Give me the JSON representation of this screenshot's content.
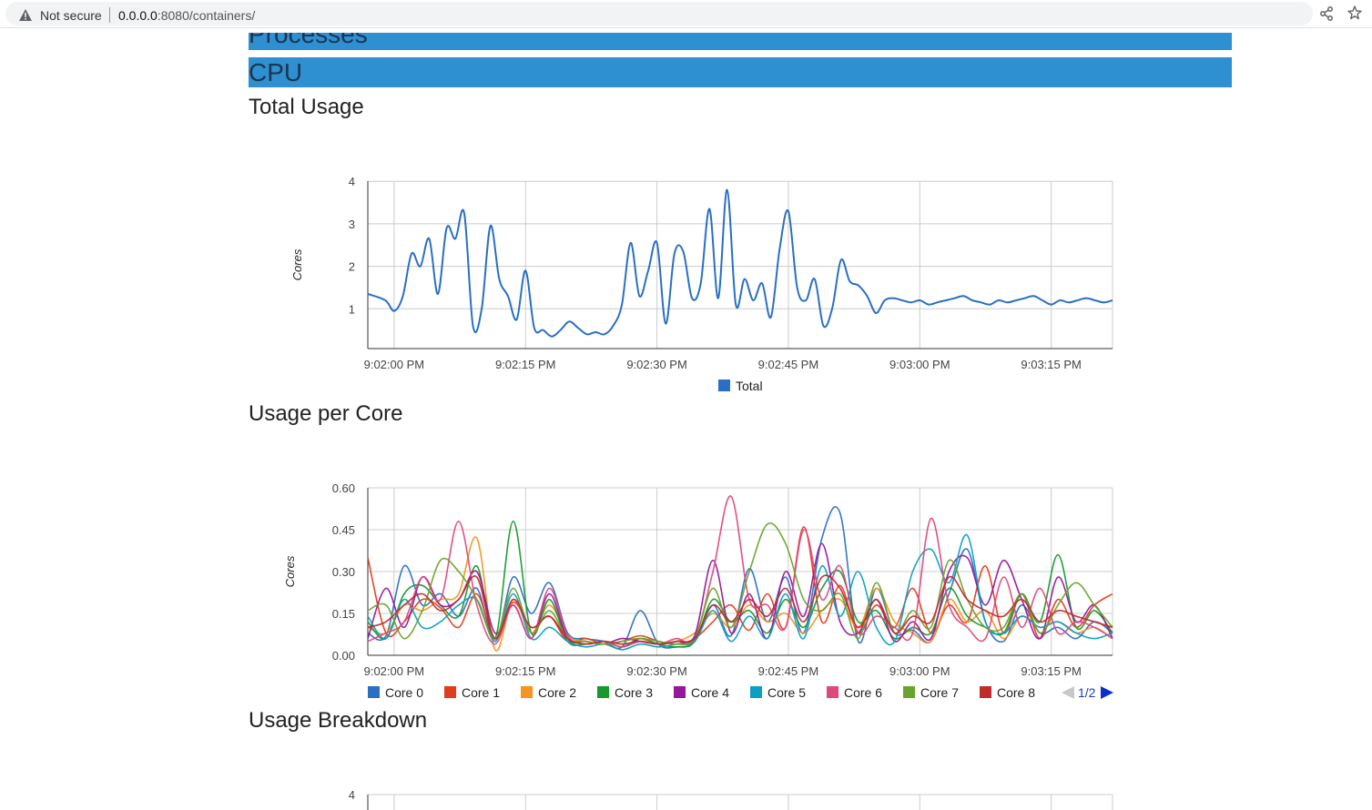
{
  "browser": {
    "security_label": "Not secure",
    "url_host": "0.0.0.0",
    "url_rest": ":8080/containers/"
  },
  "sections": {
    "processes": "Processes",
    "cpu": "CPU"
  },
  "charts": {
    "total_title": "Total Usage",
    "per_core_title": "Usage per Core",
    "breakdown_title": "Usage Breakdown"
  },
  "colors": {
    "header_bar": "#2e8fd1",
    "total": "#2a6fc4",
    "cores": [
      "#2a6fc4",
      "#e23c1f",
      "#f7931e",
      "#159a2c",
      "#97169c",
      "#0d9ec5",
      "#e0487c",
      "#6aa32d",
      "#c02b2b"
    ]
  },
  "chart_data": [
    {
      "type": "line",
      "title": "Total Usage",
      "xlabel": "",
      "ylabel": "Cores",
      "x_ticks": [
        "9:02:00 PM",
        "9:02:15 PM",
        "9:02:30 PM",
        "9:02:45 PM",
        "9:03:00 PM",
        "9:03:15 PM"
      ],
      "y_ticks": [
        "1",
        "2",
        "3",
        "4"
      ],
      "ylim": [
        0,
        4
      ],
      "x_range_seconds": [
        -3,
        82
      ],
      "legend_position": "bottom",
      "grid": true,
      "series": [
        {
          "name": "Total",
          "x": [
            -3,
            -1,
            0,
            1,
            2,
            3,
            4,
            5,
            6,
            7,
            8,
            9,
            10,
            11,
            12,
            13,
            14,
            15,
            16,
            17,
            18,
            19,
            20,
            21,
            22,
            23,
            24,
            25,
            26,
            27,
            28,
            29,
            30,
            31,
            32,
            33,
            34,
            35,
            36,
            37,
            38,
            39,
            40,
            41,
            42,
            43,
            44,
            45,
            46,
            47,
            48,
            49,
            50,
            51,
            52,
            53,
            54,
            55,
            56,
            57,
            58,
            59,
            60,
            61,
            62,
            63,
            64,
            65,
            66,
            67,
            68,
            69,
            70,
            71,
            72,
            73,
            74,
            75,
            76,
            77,
            78,
            79,
            80,
            81,
            82
          ],
          "values": [
            1.35,
            1.2,
            0.95,
            1.3,
            2.3,
            2.0,
            2.65,
            1.35,
            2.9,
            2.65,
            3.25,
            0.6,
            1.0,
            2.95,
            1.7,
            1.3,
            0.75,
            1.9,
            0.55,
            0.5,
            0.35,
            0.5,
            0.7,
            0.55,
            0.4,
            0.45,
            0.4,
            0.6,
            1.1,
            2.55,
            1.3,
            1.9,
            2.55,
            0.65,
            2.3,
            2.35,
            1.25,
            1.6,
            3.35,
            1.25,
            3.8,
            1.1,
            1.7,
            1.2,
            1.6,
            0.8,
            2.4,
            3.3,
            1.5,
            1.2,
            1.7,
            0.6,
            1.0,
            2.15,
            1.65,
            1.55,
            1.3,
            0.9,
            1.2,
            1.25,
            1.2,
            1.15,
            1.2,
            1.1,
            1.15,
            1.2,
            1.25,
            1.3,
            1.2,
            1.15,
            1.1,
            1.2,
            1.15,
            1.2,
            1.25,
            1.3,
            1.2,
            1.1,
            1.2,
            1.15,
            1.2,
            1.25,
            1.2,
            1.15,
            1.2
          ]
        }
      ]
    },
    {
      "type": "line",
      "title": "Usage per Core",
      "xlabel": "",
      "ylabel": "Cores",
      "x_ticks": [
        "9:02:00 PM",
        "9:02:15 PM",
        "9:02:30 PM",
        "9:02:45 PM",
        "9:03:00 PM",
        "9:03:15 PM"
      ],
      "y_ticks": [
        "0.00",
        "0.15",
        "0.30",
        "0.45",
        "0.60"
      ],
      "ylim": [
        0,
        0.6
      ],
      "x_range_seconds": [
        -3,
        82
      ],
      "legend_position": "bottom",
      "legend_page": "1/2",
      "grid": true,
      "series": [
        {
          "name": "Core 0",
          "values": [
            0.08,
            0.07,
            0.32,
            0.18,
            0.22,
            0.14,
            0.24,
            0.05,
            0.28,
            0.15,
            0.26,
            0.08,
            0.06,
            0.05,
            0.03,
            0.16,
            0.04,
            0.03,
            0.05,
            0.18,
            0.07,
            0.31,
            0.12,
            0.28,
            0.08,
            0.42,
            0.51,
            0.05,
            0.24,
            0.08,
            0.09,
            0.05,
            0.22,
            0.38,
            0.12,
            0.05,
            0.18,
            0.08,
            0.1,
            0.06,
            0.12,
            0.08
          ]
        },
        {
          "name": "Core 1",
          "values": [
            0.35,
            0.08,
            0.12,
            0.2,
            0.17,
            0.1,
            0.22,
            0.06,
            0.19,
            0.1,
            0.14,
            0.05,
            0.06,
            0.04,
            0.05,
            0.07,
            0.05,
            0.04,
            0.06,
            0.12,
            0.18,
            0.09,
            0.22,
            0.1,
            0.46,
            0.12,
            0.25,
            0.08,
            0.18,
            0.1,
            0.24,
            0.08,
            0.18,
            0.12,
            0.32,
            0.08,
            0.22,
            0.06,
            0.2,
            0.1,
            0.18,
            0.22
          ]
        },
        {
          "name": "Core 2",
          "values": [
            0.1,
            0.08,
            0.18,
            0.16,
            0.2,
            0.22,
            0.42,
            0.02,
            0.2,
            0.08,
            0.18,
            0.07,
            0.05,
            0.04,
            0.05,
            0.06,
            0.04,
            0.05,
            0.08,
            0.15,
            0.1,
            0.18,
            0.12,
            0.15,
            0.08,
            0.16,
            0.2,
            0.1,
            0.24,
            0.12,
            0.08,
            0.05,
            0.2,
            0.12,
            0.16,
            0.06,
            0.14,
            0.1,
            0.12,
            0.08,
            0.1,
            0.06
          ]
        },
        {
          "name": "Core 3",
          "values": [
            0.12,
            0.06,
            0.22,
            0.25,
            0.18,
            0.14,
            0.32,
            0.06,
            0.48,
            0.08,
            0.2,
            0.05,
            0.04,
            0.05,
            0.03,
            0.06,
            0.04,
            0.03,
            0.05,
            0.2,
            0.12,
            0.16,
            0.08,
            0.2,
            0.1,
            0.24,
            0.3,
            0.12,
            0.16,
            0.06,
            0.1,
            0.08,
            0.24,
            0.14,
            0.1,
            0.08,
            0.22,
            0.12,
            0.36,
            0.1,
            0.16,
            0.08
          ]
        },
        {
          "name": "Core 4",
          "values": [
            0.06,
            0.24,
            0.1,
            0.28,
            0.18,
            0.2,
            0.3,
            0.08,
            0.18,
            0.06,
            0.22,
            0.06,
            0.05,
            0.04,
            0.06,
            0.05,
            0.04,
            0.05,
            0.07,
            0.34,
            0.08,
            0.22,
            0.06,
            0.3,
            0.14,
            0.4,
            0.12,
            0.08,
            0.2,
            0.05,
            0.12,
            0.06,
            0.3,
            0.35,
            0.18,
            0.34,
            0.2,
            0.06,
            0.28,
            0.12,
            0.18,
            0.06
          ]
        },
        {
          "name": "Core 5",
          "values": [
            0.14,
            0.06,
            0.2,
            0.1,
            0.12,
            0.18,
            0.2,
            0.05,
            0.22,
            0.06,
            0.1,
            0.05,
            0.03,
            0.04,
            0.02,
            0.04,
            0.03,
            0.04,
            0.05,
            0.16,
            0.05,
            0.14,
            0.06,
            0.22,
            0.06,
            0.32,
            0.14,
            0.3,
            0.1,
            0.05,
            0.3,
            0.38,
            0.26,
            0.43,
            0.12,
            0.08,
            0.14,
            0.1,
            0.12,
            0.08,
            0.06,
            0.08
          ]
        },
        {
          "name": "Core 6",
          "values": [
            0.05,
            0.08,
            0.12,
            0.28,
            0.2,
            0.48,
            0.18,
            0.04,
            0.18,
            0.06,
            0.24,
            0.07,
            0.04,
            0.05,
            0.03,
            0.05,
            0.04,
            0.06,
            0.06,
            0.3,
            0.57,
            0.2,
            0.18,
            0.1,
            0.45,
            0.2,
            0.32,
            0.08,
            0.14,
            0.1,
            0.08,
            0.49,
            0.18,
            0.1,
            0.06,
            0.28,
            0.1,
            0.24,
            0.08,
            0.12,
            0.1,
            0.06
          ]
        },
        {
          "name": "Core 7",
          "values": [
            0.16,
            0.18,
            0.06,
            0.16,
            0.34,
            0.3,
            0.2,
            0.06,
            0.24,
            0.08,
            0.16,
            0.06,
            0.05,
            0.04,
            0.05,
            0.06,
            0.05,
            0.04,
            0.06,
            0.24,
            0.1,
            0.3,
            0.47,
            0.4,
            0.2,
            0.16,
            0.22,
            0.06,
            0.26,
            0.08,
            0.16,
            0.1,
            0.34,
            0.2,
            0.1,
            0.1,
            0.22,
            0.08,
            0.18,
            0.26,
            0.18,
            0.1
          ]
        },
        {
          "name": "Core 8",
          "values": [
            0.1,
            0.12,
            0.18,
            0.22,
            0.16,
            0.2,
            0.28,
            0.06,
            0.2,
            0.1,
            0.14,
            0.06,
            0.04,
            0.05,
            0.04,
            0.05,
            0.04,
            0.05,
            0.06,
            0.18,
            0.12,
            0.2,
            0.14,
            0.24,
            0.12,
            0.28,
            0.24,
            0.1,
            0.2,
            0.08,
            0.14,
            0.12,
            0.28,
            0.2,
            0.16,
            0.14,
            0.2,
            0.12,
            0.16,
            0.14,
            0.12,
            0.1
          ]
        }
      ]
    },
    {
      "type": "line",
      "title": "Usage Breakdown",
      "y_ticks": [
        "4"
      ],
      "grid": true,
      "series": []
    }
  ]
}
